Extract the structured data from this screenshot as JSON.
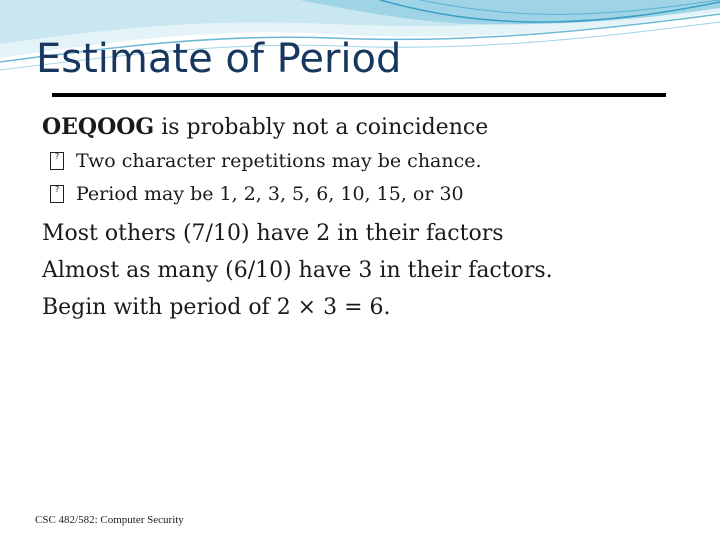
{
  "slide": {
    "title": "Estimate of Period",
    "intro": {
      "emphasis": "OEQOOG",
      "rest": " is probably not a coincidence"
    },
    "sub_points": [
      "Two character repetitions may be chance.",
      "Period may be 1, 2, 3, 5, 6, 10, 15, or 30"
    ],
    "points": [
      "Most others (7/10) have 2 in their factors",
      "Almost as many (6/10) have 3 in their factors.",
      "Begin with period of 2 × 3 = 6."
    ],
    "footer": "CSC 482/582: Computer Security"
  },
  "colors": {
    "title": "#17375e",
    "wave_light": "#cfe9f3",
    "wave_mid": "#7fc4dc",
    "wave_dark": "#3a9fc4"
  }
}
